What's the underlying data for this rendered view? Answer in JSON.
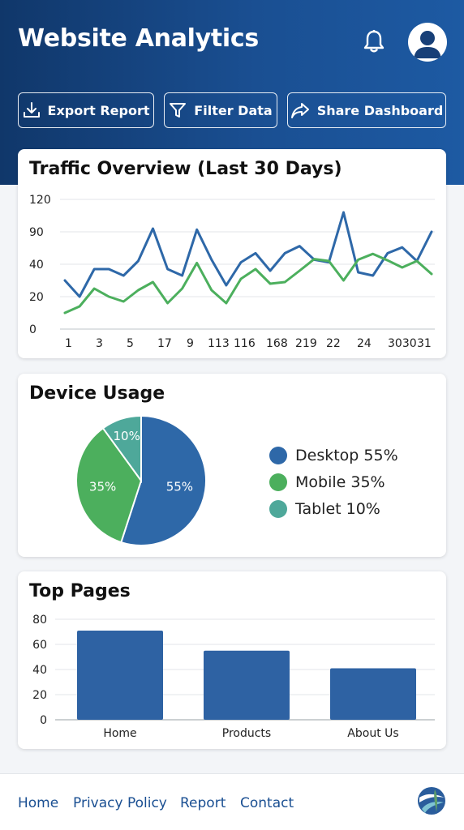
{
  "header": {
    "title": "Website Analytics",
    "bell_icon": "bell-icon",
    "avatar_icon": "user-avatar-icon"
  },
  "toolbar": {
    "export_label": "Export Report",
    "filter_label": "Filter Data",
    "share_label": "Share Dashboard"
  },
  "traffic": {
    "title": "Traffic Overview (Last 30 Days)"
  },
  "device": {
    "title": "Device Usage"
  },
  "pages": {
    "title": "Top Pages"
  },
  "footer": {
    "links": [
      "Home",
      "Privacy Policy",
      "Report",
      "Contact"
    ]
  },
  "colors": {
    "header": "#1a4f92",
    "desktop": "#2e68a8",
    "mobile": "#4caf5d",
    "tablet": "#4ea89a",
    "bar": "#2e62a3"
  },
  "chart_data": [
    {
      "type": "line",
      "title": "Traffic Overview (Last 30 Days)",
      "y_ticks": [
        "0",
        "20",
        "40",
        "90",
        "120"
      ],
      "x_tick_labels": [
        "1",
        "3",
        "5",
        "17",
        "9",
        "113",
        "116",
        "168",
        "219",
        "22",
        "24",
        "3030",
        "31"
      ],
      "grid": true,
      "series": [
        {
          "color": "#2e68a8",
          "values": [
            30,
            20,
            37,
            37,
            33,
            45,
            93,
            37,
            33,
            92,
            47,
            27,
            43,
            57,
            36,
            57,
            68,
            47,
            43,
            108,
            35,
            33,
            57,
            66,
            45,
            90
          ]
        },
        {
          "color": "#4caf5d",
          "values": [
            10,
            14,
            25,
            20,
            17,
            24,
            29,
            16,
            25,
            42,
            24,
            16,
            31,
            37,
            28,
            29,
            36,
            48,
            45,
            30,
            47,
            56,
            46,
            38,
            45,
            34
          ]
        }
      ]
    },
    {
      "type": "pie",
      "title": "Device Usage",
      "slices": [
        {
          "label": "Desktop",
          "value": 55,
          "display": "55%",
          "legend": "Desktop 55%",
          "color": "#2e68a8"
        },
        {
          "label": "Mobile",
          "value": 35,
          "display": "35%",
          "legend": "Mobile 35%",
          "color": "#4caf5d"
        },
        {
          "label": "Tablet",
          "value": 10,
          "display": "10%",
          "legend": "Tablet 10%",
          "color": "#4ea89a"
        }
      ],
      "legend_position": "right"
    },
    {
      "type": "bar",
      "title": "Top Pages",
      "categories": [
        "Home",
        "Products",
        "About Us"
      ],
      "values": [
        71,
        55,
        41
      ],
      "ylim": [
        0,
        80
      ],
      "y_ticks": [
        0,
        20,
        40,
        60,
        80
      ],
      "grid": true
    }
  ]
}
